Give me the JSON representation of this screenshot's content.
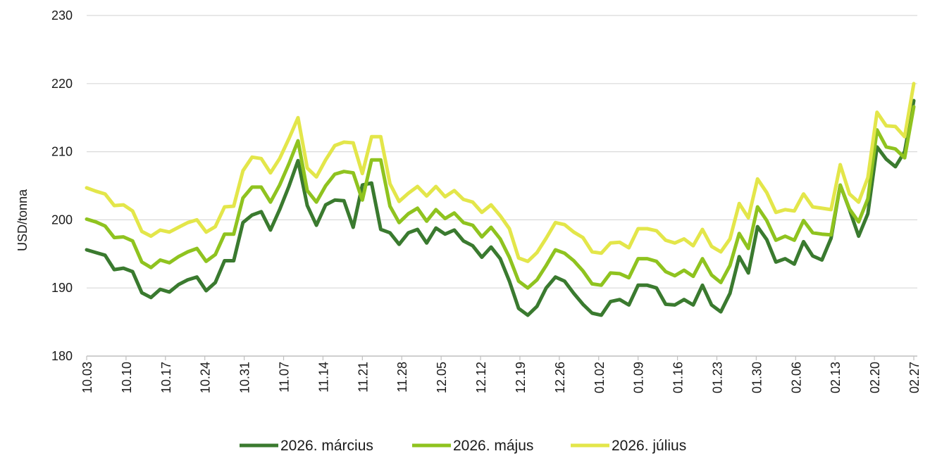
{
  "chart_data": {
    "type": "line",
    "ylabel": "USD/tonna",
    "ylim": [
      180,
      230
    ],
    "yticks": [
      180,
      190,
      200,
      210,
      220,
      230
    ],
    "grid": true,
    "legend_position": "bottom-center",
    "x_tick_labels": [
      "10.03",
      "10.10",
      "10.17",
      "10.24",
      "10.31",
      "11.07",
      "11.14",
      "11.21",
      "11.28",
      "12.05",
      "12.12",
      "12.19",
      "12.26",
      "01.02",
      "01.09",
      "01.16",
      "01.23",
      "01.30",
      "02.06",
      "02.13",
      "02.20",
      "02.27"
    ],
    "series": [
      {
        "name": "2026. március",
        "color": "#3a7a2f",
        "values": [
          195.6,
          195.2,
          194.8,
          192.7,
          192.9,
          192.4,
          189.3,
          188.6,
          189.8,
          189.4,
          190.5,
          191.2,
          191.6,
          189.6,
          190.8,
          194.0,
          194.0,
          199.6,
          200.7,
          201.2,
          198.5,
          201.5,
          204.9,
          208.7,
          202.1,
          199.2,
          202.2,
          202.9,
          202.8,
          198.9,
          205.1,
          205.4,
          198.6,
          198.1,
          196.4,
          198.1,
          198.6,
          196.6,
          198.8,
          197.9,
          198.5,
          196.9,
          196.2,
          194.5,
          196.0,
          194.3,
          191.0,
          187.0,
          186.0,
          187.3,
          190.0,
          191.6,
          191.0,
          189.2,
          187.6,
          186.3,
          186.0,
          188.0,
          188.3,
          187.5,
          190.4,
          190.4,
          190.0,
          187.6,
          187.5,
          188.3,
          187.5,
          190.4,
          187.5,
          186.5,
          189.2,
          194.6,
          192.2,
          199.0,
          197.1,
          193.8,
          194.3,
          193.5,
          196.8,
          194.7,
          194.1,
          197.3,
          205.1,
          201.5,
          197.6,
          200.9,
          210.7,
          208.9,
          207.8,
          210.0,
          217.5
        ]
      },
      {
        "name": "2026. május",
        "color": "#8fc31f",
        "values": [
          200.1,
          199.7,
          199.1,
          197.4,
          197.5,
          196.9,
          193.8,
          193.0,
          194.1,
          193.7,
          194.6,
          195.3,
          195.8,
          193.9,
          194.9,
          197.9,
          197.9,
          203.2,
          204.8,
          204.8,
          202.6,
          205.1,
          208.2,
          211.6,
          204.3,
          202.6,
          205.0,
          206.7,
          207.1,
          206.9,
          202.9,
          208.8,
          208.8,
          202.0,
          199.6,
          200.9,
          201.7,
          199.8,
          201.5,
          200.2,
          201.0,
          199.6,
          199.2,
          197.5,
          198.9,
          197.2,
          194.5,
          191.0,
          190.0,
          191.2,
          193.3,
          195.6,
          195.1,
          194.0,
          192.5,
          190.6,
          190.4,
          192.2,
          192.1,
          191.5,
          194.3,
          194.3,
          193.9,
          192.4,
          191.8,
          192.6,
          191.7,
          194.3,
          191.9,
          190.8,
          193.3,
          198.0,
          195.8,
          201.9,
          199.9,
          197.0,
          197.6,
          197.0,
          199.9,
          198.1,
          197.9,
          197.8,
          205.1,
          201.6,
          199.7,
          203.1,
          213.2,
          210.7,
          210.4,
          209.1,
          216.6
        ]
      },
      {
        "name": "2026. július",
        "color": "#e3e64a",
        "values": [
          204.7,
          204.2,
          203.8,
          202.1,
          202.2,
          201.3,
          198.3,
          197.6,
          198.5,
          198.2,
          198.9,
          199.6,
          200.0,
          198.2,
          199.0,
          201.9,
          202.0,
          207.2,
          209.2,
          209.0,
          206.9,
          209.0,
          211.9,
          215.0,
          207.6,
          206.3,
          208.8,
          210.9,
          211.4,
          211.3,
          206.8,
          212.2,
          212.2,
          205.3,
          202.7,
          203.9,
          204.9,
          203.5,
          204.9,
          203.4,
          204.3,
          203.0,
          202.6,
          201.1,
          202.2,
          200.6,
          198.7,
          194.4,
          193.9,
          195.2,
          197.3,
          199.6,
          199.3,
          198.2,
          197.4,
          195.3,
          195.1,
          196.6,
          196.7,
          195.9,
          198.7,
          198.7,
          198.4,
          197.0,
          196.6,
          197.2,
          196.2,
          198.6,
          196.1,
          195.3,
          197.2,
          202.4,
          200.3,
          206.0,
          204.0,
          201.1,
          201.5,
          201.3,
          203.8,
          201.9,
          201.7,
          201.5,
          208.1,
          203.8,
          202.6,
          206.2,
          215.8,
          213.8,
          213.7,
          212.2,
          220.0
        ]
      }
    ]
  }
}
